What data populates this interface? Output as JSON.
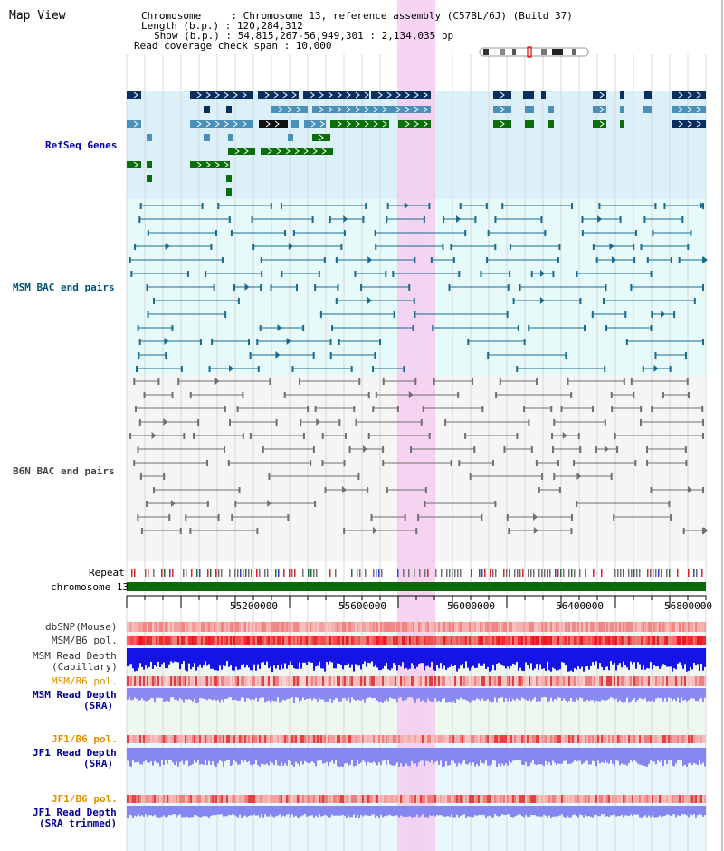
{
  "header": {
    "title": "Map View",
    "info_lines": [
      "Chromosome     : Chromosome 13, reference assembly (C57BL/6J) (Build 37)",
      "Length (b.p.) : 120,284,312",
      "Show (b.p.) : 54,815,267-56,949,301 : 2,134,035 bp",
      "Read coverage check span : 10,000"
    ]
  },
  "tracks": {
    "refseq": {
      "label": "RefSeq Genes",
      "color": "#0000aa"
    },
    "msm_bac": {
      "label": "MSM BAC end pairs",
      "color": "#005577"
    },
    "b6n_bac": {
      "label": "B6N BAC end pairs",
      "color": "#444444"
    },
    "repeat": {
      "label": "Repeat"
    },
    "chromosome": {
      "label": "chromosome 13"
    },
    "dbsnp": {
      "label": "dbSNP(Mouse)"
    },
    "msm_b6_pol_1": {
      "label": "MSM/B6 pol."
    },
    "msm_read_depth_cap": {
      "label_1": "MSM Read Depth",
      "label_2": "(Capillary)"
    },
    "msm_b6_pol_2": {
      "label": "MSM/B6 pol."
    },
    "msm_read_depth_sra": {
      "label_1": "MSM Read Depth",
      "label_2": "(SRA)"
    },
    "jf1_b6_pol_1": {
      "label": "JF1/B6 pol."
    },
    "jf1_read_depth_sra": {
      "label_1": "JF1 Read Depth",
      "label_2": "(SRA)"
    },
    "jf1_b6_pol_2": {
      "label": "JF1/B6 pol."
    },
    "jf1_read_depth_trim": {
      "label_1": "JF1 Read Depth",
      "label_2": "(SRA trimmed)"
    }
  },
  "axis": {
    "ticks": [
      "55200000",
      "55600000",
      "56000000",
      "56400000",
      "56800000"
    ]
  },
  "colors": {
    "highlight": "#f5cdf0",
    "refseq_bg": "#dcf0fa",
    "msm_bg": "#e6fafa",
    "b6n_bg": "#f5f5f5",
    "gene_dark": "#08305e",
    "gene_mid": "#4a90b8",
    "gene_green": "#0a6e0a",
    "chromosome": "#0a6a0a",
    "snp_pink": "#f5a0a0",
    "pol_red": "#e83030",
    "depth_blue": "#1010e0",
    "depth_lavender": "#8080f0"
  }
}
